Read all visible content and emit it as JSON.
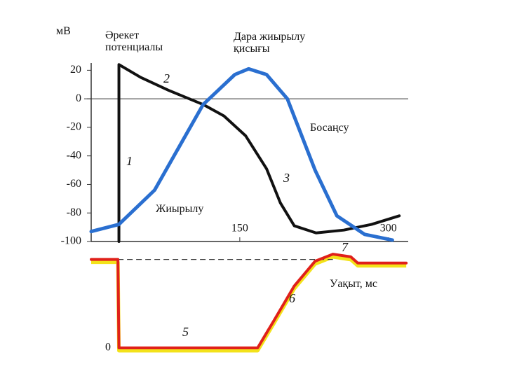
{
  "chart_data": [
    {
      "type": "line",
      "y_label": "мВ",
      "x_label": "Уақыт, мс",
      "annotations": [
        "Әрекет потенциалы",
        "Дара жиырылу қисығы",
        "Босаңсу",
        "Жиырылу",
        "1",
        "2",
        "3"
      ],
      "xlim": [
        0,
        320
      ],
      "xticks": [
        150,
        300
      ],
      "ylim": [
        -100,
        30
      ],
      "yticks": [
        20,
        0,
        -20,
        -40,
        -60,
        -80,
        -100
      ],
      "series": [
        {
          "color": "#111111",
          "x": [
            28,
            28,
            50,
            78,
            113,
            134,
            156,
            177,
            191,
            205,
            227,
            255,
            283,
            311
          ],
          "values": [
            -100,
            24,
            15,
            6,
            -4,
            -12,
            -26,
            -49,
            -73,
            -89,
            -94,
            -92,
            -88,
            -82
          ]
        },
        {
          "color": "#2a6fd0",
          "x": [
            0,
            28,
            64,
            113,
            145,
            159,
            177,
            198,
            226,
            248,
            276,
            304
          ],
          "values": [
            -93,
            -88,
            -64,
            -4,
            17,
            21,
            17,
            0,
            -50,
            -82,
            -95,
            -99
          ]
        }
      ]
    },
    {
      "type": "line",
      "annotations": [
        "5",
        "6",
        "7"
      ],
      "xlim": [
        0,
        320
      ],
      "ylim": [
        0,
        110
      ],
      "yticks": [
        0
      ],
      "series": [
        {
          "color": "#e0201a",
          "x": [
            0,
            27,
            28,
            168,
            184,
            205,
            226,
            244,
            262,
            269,
            318
          ],
          "values": [
            100,
            100,
            0,
            0,
            30,
            70,
            98,
            106,
            103,
            96,
            96
          ]
        }
      ]
    }
  ]
}
